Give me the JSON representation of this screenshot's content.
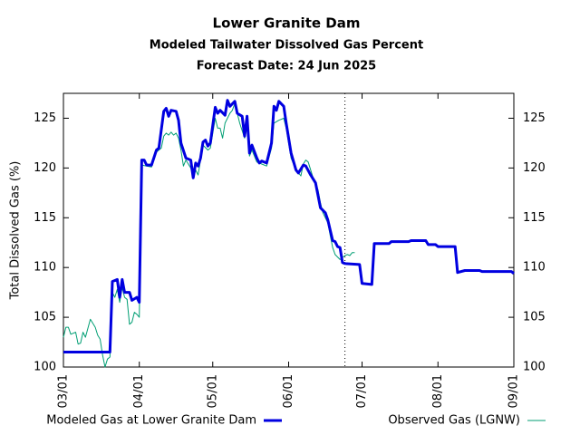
{
  "chart_data": {
    "type": "line",
    "title": "Lower Granite Dam",
    "subtitle": "Modeled Tailwater Dissolved Gas Percent",
    "forecast_label": "Forecast Date: 24 Jun 2025",
    "ylabel": "Total Dissolved Gas (%)",
    "xlim": [
      "03/01",
      "09/01"
    ],
    "xticks": [
      "03/01",
      "04/01",
      "05/01",
      "06/01",
      "07/01",
      "08/01",
      "09/01"
    ],
    "ylim": [
      100,
      127.5
    ],
    "yticks": [
      100,
      105,
      110,
      115,
      120,
      125
    ],
    "mirror_y": true,
    "vline_x": "06/24",
    "series": [
      {
        "name": "Modeled Gas at Lower Granite Dam",
        "color": "#0000e0",
        "width": 3,
        "x": [
          "03/01",
          "03/20",
          "03/21",
          "03/23",
          "03/24",
          "03/25",
          "03/26",
          "03/28",
          "03/29",
          "03/31",
          "04/01",
          "04/02",
          "04/03",
          "04/04",
          "04/06",
          "04/08",
          "04/09",
          "04/11",
          "04/12",
          "04/13",
          "04/14",
          "04/16",
          "04/17",
          "04/18",
          "04/20",
          "04/22",
          "04/23",
          "04/24",
          "04/25",
          "04/26",
          "04/27",
          "04/28",
          "04/29",
          "04/30",
          "05/02",
          "05/03",
          "05/04",
          "05/06",
          "05/07",
          "05/08",
          "05/10",
          "05/11",
          "05/13",
          "05/14",
          "05/15",
          "05/16",
          "05/17",
          "05/19",
          "05/20",
          "05/21",
          "05/23",
          "05/25",
          "05/26",
          "05/27",
          "05/28",
          "05/30",
          "05/31",
          "06/02",
          "06/04",
          "06/05",
          "06/07",
          "06/08",
          "06/10",
          "06/12",
          "06/14",
          "06/16",
          "06/17",
          "06/19",
          "06/20",
          "06/21",
          "06/22",
          "06/23",
          "06/24",
          "06/30",
          "07/01",
          "07/05",
          "07/06",
          "07/12",
          "07/13",
          "07/20",
          "07/21",
          "07/27",
          "07/28",
          "07/31",
          "08/01",
          "08/08",
          "08/09",
          "08/12",
          "08/18",
          "08/19",
          "08/31",
          "09/01"
        ],
        "values": [
          101.5,
          101.5,
          108.6,
          108.8,
          107,
          108.8,
          107.5,
          107.5,
          106.7,
          107,
          106.5,
          120.8,
          120.8,
          120.3,
          120.3,
          121.8,
          122,
          125.7,
          126,
          125.2,
          125.8,
          125.7,
          124.8,
          122.5,
          121,
          120.8,
          119,
          120.5,
          120.2,
          121,
          122.6,
          122.8,
          122.2,
          122.5,
          126.1,
          125.5,
          125.8,
          125.3,
          126.8,
          126.2,
          126.7,
          125.5,
          125.2,
          123.2,
          125.2,
          121.5,
          122.3,
          121,
          120.5,
          120.7,
          120.5,
          122.5,
          126.2,
          125.8,
          126.7,
          126.2,
          124.5,
          121.5,
          119.8,
          119.5,
          120.3,
          120.2,
          119.3,
          118.5,
          116,
          115.5,
          114.8,
          112.7,
          112.6,
          112.1,
          112,
          110.5,
          110.4,
          110.3,
          108.4,
          108.3,
          112.4,
          112.4,
          112.6,
          112.6,
          112.7,
          112.7,
          112.3,
          112.3,
          112.1,
          112.1,
          109.5,
          109.7,
          109.7,
          109.6,
          109.6,
          109.4
        ]
      },
      {
        "name": "Observed Gas (LGNW)",
        "color": "#009e73",
        "width": 1,
        "x": [
          "03/01",
          "03/02",
          "03/03",
          "03/04",
          "03/06",
          "03/07",
          "03/08",
          "03/09",
          "03/10",
          "03/12",
          "03/14",
          "03/15",
          "03/16",
          "03/17",
          "03/18",
          "03/19",
          "03/20",
          "03/21",
          "03/22",
          "03/23",
          "03/24",
          "03/25",
          "03/26",
          "03/27",
          "03/28",
          "03/29",
          "03/30",
          "03/31",
          "04/01",
          "04/02",
          "04/04",
          "04/06",
          "04/08",
          "04/10",
          "04/11",
          "04/12",
          "04/13",
          "04/14",
          "04/15",
          "04/16",
          "04/17",
          "04/18",
          "04/19",
          "04/20",
          "04/22",
          "04/23",
          "04/24",
          "04/25",
          "04/26",
          "04/27",
          "04/29",
          "04/30",
          "05/02",
          "05/03",
          "05/04",
          "05/05",
          "05/06",
          "05/08",
          "05/09",
          "05/10",
          "05/12",
          "05/14",
          "05/15",
          "05/16",
          "05/17",
          "05/19",
          "05/21",
          "05/23",
          "05/25",
          "05/26",
          "05/28",
          "05/30",
          "05/31",
          "06/02",
          "06/04",
          "06/06",
          "06/07",
          "06/08",
          "06/09",
          "06/11",
          "06/13",
          "06/14",
          "06/15",
          "06/17",
          "06/18",
          "06/19",
          "06/20",
          "06/22",
          "06/24",
          "06/25",
          "06/26",
          "06/27",
          "06/28"
        ],
        "values": [
          103,
          104,
          104,
          103.3,
          103.5,
          102.3,
          102.4,
          103.5,
          103,
          104.8,
          104,
          103.2,
          102.8,
          101.2,
          100,
          100.8,
          101,
          107.5,
          107,
          107.8,
          106.5,
          108,
          107,
          106.8,
          104.3,
          104.5,
          105.5,
          105.3,
          105,
          120.3,
          120.2,
          120.1,
          121.6,
          122,
          123.2,
          123.5,
          123.3,
          123.6,
          123.3,
          123.5,
          123,
          121.8,
          120.2,
          120.8,
          120,
          119,
          119.8,
          119.3,
          120.8,
          122.3,
          121.8,
          122,
          125,
          124,
          124,
          123,
          124.5,
          125.5,
          125.8,
          126.5,
          124.5,
          123,
          124,
          121.2,
          121.8,
          120.6,
          120.4,
          120.2,
          122,
          124.5,
          124.8,
          125,
          124,
          121,
          119.8,
          119.2,
          120.4,
          120.8,
          120.6,
          119,
          117.8,
          116.5,
          115.5,
          114.5,
          113.2,
          112,
          111.3,
          110.8,
          111.2,
          111.3,
          111.2,
          111.5,
          111.5
        ]
      }
    ]
  }
}
